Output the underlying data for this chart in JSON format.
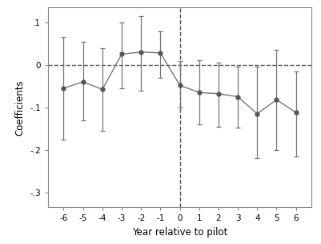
{
  "x": [
    -6,
    -5,
    -4,
    -3,
    -2,
    -1,
    0,
    1,
    2,
    3,
    4,
    5,
    6
  ],
  "y": [
    -0.055,
    -0.04,
    -0.058,
    0.025,
    0.03,
    0.028,
    -0.048,
    -0.065,
    -0.068,
    -0.075,
    -0.115,
    -0.082,
    -0.112
  ],
  "y_upper": [
    0.065,
    0.055,
    0.04,
    0.1,
    0.115,
    0.078,
    0.008,
    0.01,
    0.005,
    -0.005,
    -0.005,
    0.035,
    -0.015
  ],
  "y_lower": [
    -0.175,
    -0.13,
    -0.155,
    -0.055,
    -0.06,
    -0.03,
    -0.1,
    -0.14,
    -0.145,
    -0.148,
    -0.22,
    -0.2,
    -0.215
  ],
  "vline_x": 0,
  "hline_y": 0,
  "xlabel": "Year relative to pilot",
  "ylabel": "Coefficients",
  "xlim": [
    -6.8,
    6.8
  ],
  "ylim": [
    -0.335,
    0.135
  ],
  "yticks": [
    0.1,
    0.0,
    -0.1,
    -0.2,
    -0.3
  ],
  "ytick_labels": [
    ".1",
    "0",
    "-.1",
    "-.2",
    "-.3"
  ],
  "xticks": [
    -6,
    -5,
    -4,
    -3,
    -2,
    -1,
    0,
    1,
    2,
    3,
    4,
    5,
    6
  ],
  "line_color": "#777777",
  "marker_color": "#555555",
  "marker_size": 3.5,
  "line_width": 1.0,
  "capsize": 2.5,
  "elinewidth": 0.9,
  "background_color": "#ffffff",
  "tick_fontsize": 7.5,
  "label_fontsize": 8.5
}
